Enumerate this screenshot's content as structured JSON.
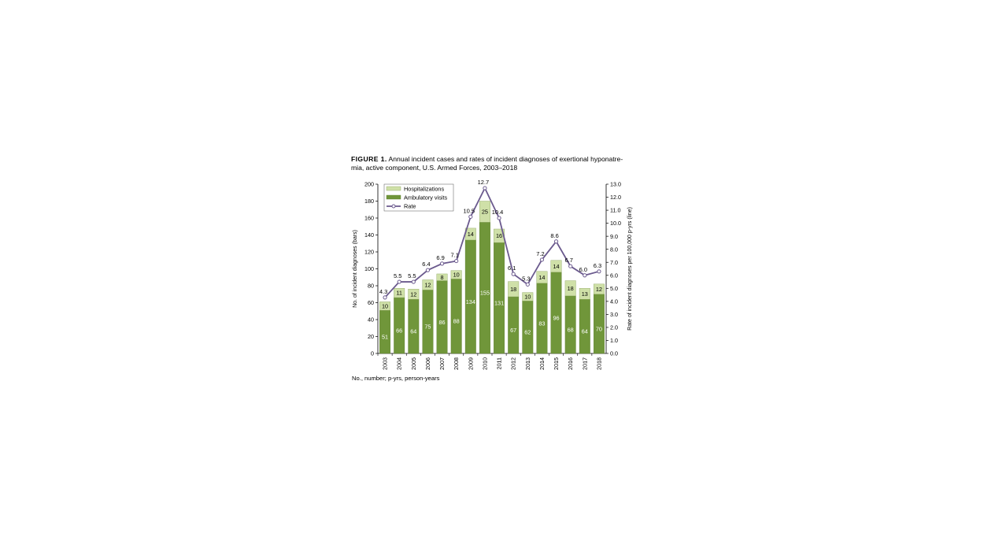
{
  "figure": {
    "label": "FIGURE 1.",
    "caption": "Annual incident cases and rates of incident diagnoses of exertional hyponatre-mia, active component, U.S. Armed Forces, 2003–2018",
    "footnote": "No., number; p-yrs, person-years"
  },
  "colors": {
    "ambulatory": "#70963a",
    "hospitalizations": "#cfe0a8",
    "rate": "#6b5a8e"
  },
  "chart_data": {
    "type": "bar",
    "stacked": true,
    "categories": [
      "2003",
      "2004",
      "2005",
      "2006",
      "2007",
      "2008",
      "2009",
      "2010",
      "2011",
      "2012",
      "2013",
      "2014",
      "2015",
      "2016",
      "2017",
      "2018"
    ],
    "series": [
      {
        "name": "Ambulatory visits",
        "values": [
          51,
          66,
          64,
          75,
          86,
          88,
          134,
          155,
          131,
          67,
          62,
          83,
          96,
          68,
          64,
          70
        ]
      },
      {
        "name": "Hospitalizations",
        "values": [
          10,
          11,
          12,
          12,
          8,
          10,
          14,
          25,
          16,
          18,
          10,
          14,
          14,
          18,
          13,
          12
        ]
      }
    ],
    "line_series": {
      "name": "Rate",
      "axis": "right",
      "values": [
        4.3,
        5.5,
        5.5,
        6.4,
        6.9,
        7.1,
        10.5,
        12.7,
        10.4,
        6.1,
        5.3,
        7.2,
        8.6,
        6.7,
        6.0,
        6.3
      ],
      "labels": [
        "4.3",
        "5.5",
        "5.5",
        "6.4",
        "6.9",
        "7.1",
        "10.5",
        "12.7",
        "10.4",
        "6.1",
        "5.3",
        "7.2",
        "8.6",
        "6.7",
        "6.0",
        "6.3"
      ]
    },
    "ylabel": "No. of incident diagnoses (bars)",
    "y2label": "Rate of incident diagnoses per 100,000 p-yrs (line)",
    "ylim": [
      0,
      200
    ],
    "y2lim": [
      0,
      13
    ],
    "yticks": [
      "0",
      "20",
      "40",
      "60",
      "80",
      "100",
      "120",
      "140",
      "160",
      "180",
      "200"
    ],
    "y2ticks": [
      "0.0",
      "1.0",
      "2.0",
      "3.0",
      "4.0",
      "5.0",
      "6.0",
      "7.0",
      "8.0",
      "9.0",
      "10.0",
      "11.0",
      "12.0",
      "13.0"
    ],
    "legend": [
      "Hospitalizations",
      "Ambulatory visits",
      "Rate"
    ],
    "legend_position": "top-left",
    "grid": false
  }
}
